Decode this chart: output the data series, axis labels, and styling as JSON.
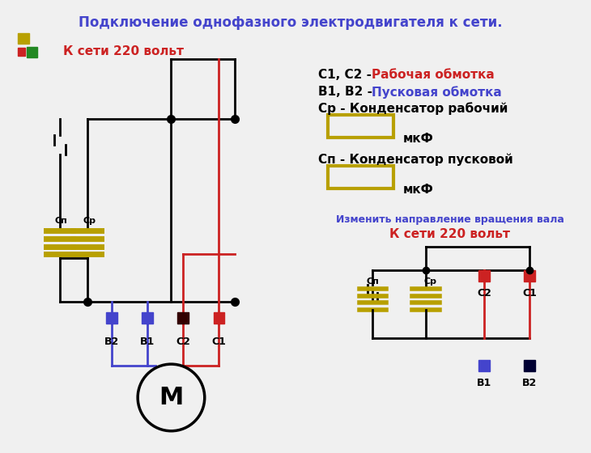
{
  "title": "Подключение однофазного электродвигателя к сети.",
  "title_color": "#4444cc",
  "title_fontsize": 12,
  "bg_color": "#f0f0f0",
  "label_220": "К сети 220 вольт",
  "label_220_color": "#cc2222",
  "legend_c1c2_black": "С1, С2 - ",
  "legend_c1c2_colored": "Рабочая обмотка",
  "legend_c1c2_color": "#cc2222",
  "legend_b1b2_black": "В1, В2 - ",
  "legend_b1b2_colored": "Пусковая обмотка",
  "legend_b1b2_color": "#4444cc",
  "legend_cr": "Ср - Конденсатор рабочий",
  "legend_cp": "Сп - Конденсатор пусковой",
  "legend_mkf": "мкФ",
  "change_text": "Изменить направление вращения вала",
  "change_color": "#4444cc",
  "label_220_2": "К сети 220 вольт",
  "label_220_2_color": "#cc2222",
  "cap_color": "#b8a000",
  "wire_color": "#000000",
  "red_wire": "#cc2222",
  "blue_wire": "#4444cc",
  "b1_color": "#4444cc",
  "b2_color": "#4444cc",
  "c1_color": "#cc2222",
  "c2_color": "#330000"
}
